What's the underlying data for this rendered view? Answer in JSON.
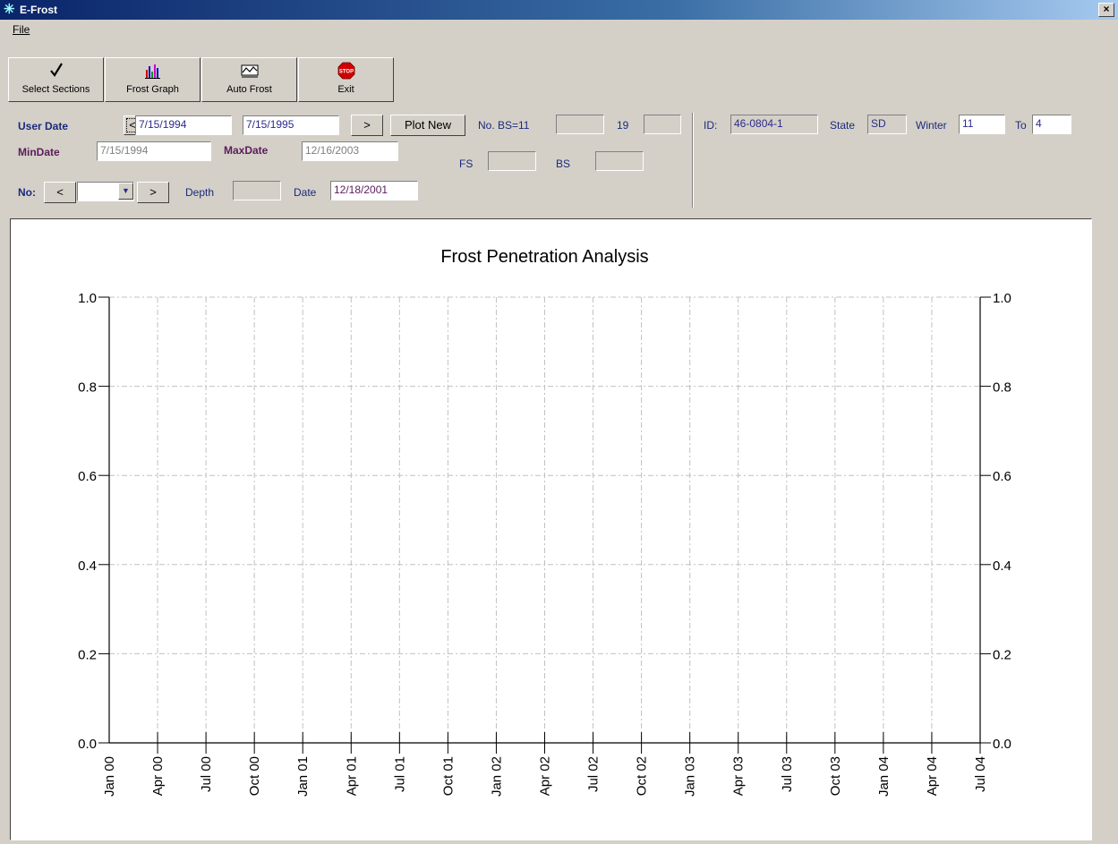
{
  "window": {
    "title": "E-Frost",
    "icon": "snowflake-icon",
    "close_label": "×"
  },
  "menu": {
    "file_label": "File"
  },
  "toolbar": {
    "select_sections": "Select Sections",
    "frost_graph": "Frost Graph",
    "auto_frost": "Auto Frost",
    "exit": "Exit",
    "stop_sign_text": "STOP"
  },
  "controls": {
    "user_date_label": "User Date",
    "prev_btn": "<",
    "next_btn": ">",
    "user_date_start": "7/15/1994",
    "user_date_end": "7/15/1995",
    "plot_new": "Plot New",
    "no_bs_label": "No. BS=11",
    "no_bs_value": "",
    "count_label": "19",
    "count_value": "",
    "mindate_label": "MinDate",
    "mindate_value": "7/15/1994",
    "maxdate_label": "MaxDate",
    "maxdate_value": "12/16/2003",
    "fs_label": "FS",
    "fs_value": "",
    "bs_label": "BS",
    "bs_value": "",
    "no_label": "No:",
    "no_prev": "<",
    "no_next": ">",
    "no_select_value": "",
    "depth_label": "Depth",
    "depth_value": "",
    "date_label": "Date",
    "date_value": "12/18/2001",
    "id_label": "ID:",
    "id_value": "46-0804-1",
    "state_label": "State",
    "state_value": "SD",
    "winter_label": "Winter",
    "winter_value": "11",
    "to_label": "To",
    "to_value": "4"
  },
  "chart_data": {
    "type": "line",
    "title": "Frost Penetration Analysis",
    "xlabel": "",
    "ylabel": "",
    "x_ticks": [
      "Jan 00",
      "Apr 00",
      "Jul 00",
      "Oct 00",
      "Jan 01",
      "Apr 01",
      "Jul 01",
      "Oct 01",
      "Jan 02",
      "Apr 02",
      "Jul 02",
      "Oct 02",
      "Jan 03",
      "Apr 03",
      "Jul 03",
      "Oct 03",
      "Jan 04",
      "Apr 04",
      "Jul 04"
    ],
    "y_ticks": [
      "0.0",
      "0.2",
      "0.4",
      "0.6",
      "0.8",
      "1.0"
    ],
    "ylim": [
      0,
      1
    ],
    "y_axis_right": true,
    "grid": true,
    "series": []
  }
}
